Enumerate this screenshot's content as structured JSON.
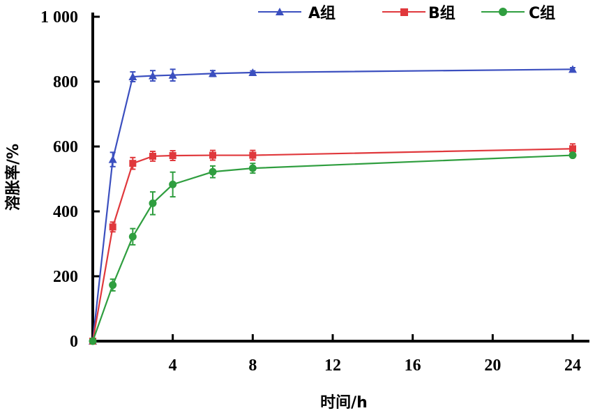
{
  "chart_data": {
    "type": "line",
    "xlabel": "时间/h",
    "ylabel": "溶胀率/%",
    "xlim": [
      0,
      24
    ],
    "ylim": [
      0,
      1000
    ],
    "x_ticks": [
      4,
      8,
      12,
      16,
      20,
      24
    ],
    "y_ticks": [
      0,
      200,
      400,
      600,
      800,
      1000
    ],
    "x_tick_labels": [
      "4",
      "8",
      "12",
      "16",
      "20",
      "24"
    ],
    "y_tick_labels": [
      "0",
      "200",
      "400",
      "600",
      "800",
      "1 000"
    ],
    "grid": false,
    "legend_position": "top",
    "series": [
      {
        "name": "A组",
        "color": "#3b4fbf",
        "marker": "triangle",
        "x": [
          0,
          1,
          2,
          3,
          4,
          6,
          8,
          24
        ],
        "y": [
          0,
          560,
          815,
          818,
          820,
          825,
          828,
          838
        ],
        "error": [
          0,
          22,
          15,
          16,
          18,
          9,
          5,
          5
        ]
      },
      {
        "name": "B组",
        "color": "#e0383c",
        "marker": "square",
        "x": [
          0,
          1,
          2,
          3,
          4,
          6,
          8,
          24
        ],
        "y": [
          0,
          352,
          548,
          570,
          572,
          573,
          573,
          593
        ],
        "error": [
          0,
          15,
          18,
          15,
          15,
          15,
          15,
          15
        ]
      },
      {
        "name": "C组",
        "color": "#2f9e3f",
        "marker": "circle",
        "x": [
          0,
          1,
          2,
          3,
          4,
          6,
          8,
          24
        ],
        "y": [
          0,
          173,
          322,
          425,
          483,
          522,
          533,
          573
        ],
        "error": [
          0,
          18,
          25,
          35,
          38,
          18,
          15,
          6
        ]
      }
    ]
  }
}
